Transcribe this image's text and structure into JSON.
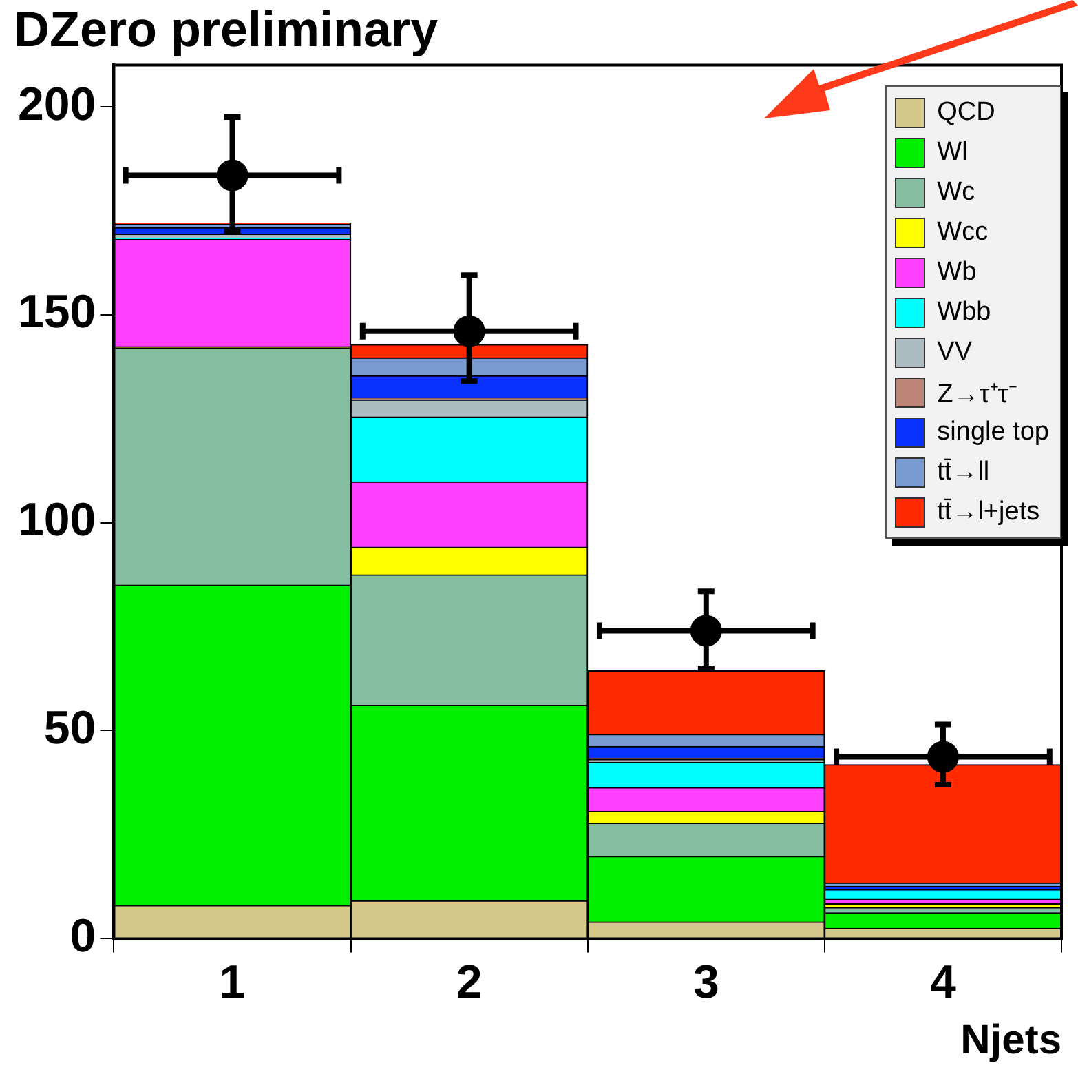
{
  "chart_data": {
    "type": "bar",
    "title": "DZero preliminary",
    "xlabel": "Njets",
    "stacked": true,
    "x": [
      1,
      2,
      3,
      4
    ],
    "xlim": [
      0.5,
      4.5
    ],
    "xticks": [
      1,
      2,
      3,
      4
    ],
    "ylim": [
      0,
      210
    ],
    "yticks": [
      0,
      50,
      100,
      150,
      200
    ],
    "grid": false,
    "legend": "top right",
    "marker": "circle",
    "series": [
      {
        "name": "QCD",
        "color": "#d4c98a",
        "values": [
          8,
          9.1,
          4,
          2.5
        ]
      },
      {
        "name": "Wl",
        "color": "#00f000",
        "values": [
          77,
          47,
          15.8,
          3.7
        ]
      },
      {
        "name": "Wc",
        "color": "#86bea2",
        "values": [
          57,
          31.4,
          8,
          1.3
        ]
      },
      {
        "name": "Wcc",
        "color": "#ffff00",
        "values": [
          0.3,
          6.6,
          2.8,
          0.9
        ]
      },
      {
        "name": "Wb",
        "color": "#ff40ff",
        "values": [
          25.8,
          15.7,
          5.7,
          1.1
        ]
      },
      {
        "name": "Wbb",
        "color": "#00ffff",
        "values": [
          0.3,
          15.6,
          6.1,
          2.3
        ]
      },
      {
        "name": "VV",
        "color": "#adbcc2",
        "values": [
          1,
          4.1,
          0.7,
          null
        ]
      },
      {
        "name": "Z→τ⁺τ⁻",
        "color": "#bd8577",
        "values": [
          null,
          0.5,
          0.3,
          null
        ]
      },
      {
        "name": "single top",
        "color": "#0a32ff",
        "values": [
          1.5,
          5.3,
          2.8,
          0.8
        ]
      },
      {
        "name": "tt̄→ll",
        "color": "#7a9ad2",
        "values": [
          0.8,
          4.3,
          2.9,
          0.8
        ]
      },
      {
        "name": "tt̄→l+jets",
        "color": "#ff2a00",
        "values": [
          0.3,
          3.2,
          15.3,
          28.4
        ]
      },
      {
        "type": "scatter",
        "color": "#000000",
        "x": [
          1,
          2,
          3,
          4
        ],
        "values": [
          183.5,
          146,
          74,
          43.7
        ],
        "errors": [
          [
            170,
            197.5
          ],
          [
            134,
            159.5
          ],
          [
            65,
            83.5
          ],
          [
            37,
            51.5
          ]
        ],
        "xerrors": [
          0.45,
          0.45,
          0.45,
          0.45
        ]
      }
    ]
  }
}
